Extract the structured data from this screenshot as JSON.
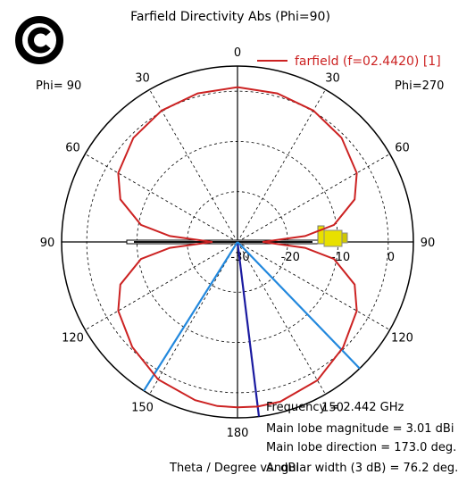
{
  "chart_data": {
    "type": "polar-line",
    "title": "Farfield Directivity Abs (Phi=90)",
    "left_label": "Phi= 90",
    "right_label": "Phi=270",
    "angle_labels": [
      {
        "deg": 0,
        "text": "0"
      },
      {
        "deg": 30,
        "text": "30"
      },
      {
        "deg": 60,
        "text": "60"
      },
      {
        "deg": 90,
        "text": "90"
      },
      {
        "deg": 120,
        "text": "120"
      },
      {
        "deg": 150,
        "text": "150"
      },
      {
        "deg": 180,
        "text": "180"
      },
      {
        "deg": -30,
        "text": "30"
      },
      {
        "deg": -60,
        "text": "60"
      },
      {
        "deg": -90,
        "text": "90"
      },
      {
        "deg": -120,
        "text": "120"
      },
      {
        "deg": -150,
        "text": "150"
      }
    ],
    "radial_range": [
      -30,
      5
    ],
    "radial_ticks": [
      {
        "value": -30,
        "text": "-30"
      },
      {
        "value": -20,
        "text": "-20"
      },
      {
        "value": -10,
        "text": "-10"
      },
      {
        "value": 0,
        "text": "0"
      }
    ],
    "grid": true,
    "legend": {
      "placement": "top-right",
      "label": "farfield (f=02.4420) [1]",
      "color": "#cc2222"
    },
    "series": [
      {
        "name": "farfield (f=02.4420) [1]",
        "color": "#cc2222",
        "theta_deg": [
          0,
          15,
          30,
          45,
          60,
          70,
          80,
          85,
          90,
          95,
          100,
          110,
          120,
          135,
          150,
          165,
          173,
          180,
          187,
          195,
          210,
          225,
          240,
          250,
          260,
          265,
          270,
          275,
          280,
          290,
          300,
          315,
          330,
          345,
          360
        ],
        "directivity_dbi": [
          0.8,
          0.6,
          0.2,
          -0.7,
          -2.6,
          -5.2,
          -10.5,
          -16.5,
          -25.0,
          -16.5,
          -10.5,
          -5.2,
          -2.6,
          -0.3,
          1.8,
          2.9,
          3.01,
          2.9,
          2.9,
          2.6,
          1.6,
          -0.4,
          -2.6,
          -5.2,
          -10.5,
          -16.5,
          -25.0,
          -16.5,
          -10.5,
          -5.2,
          -2.6,
          -0.7,
          0.2,
          0.6,
          0.8
        ]
      }
    ],
    "lines": [
      {
        "kind": "main-lobe-direction",
        "theta_deg": 173.0,
        "color": "#1a1aa0"
      },
      {
        "kind": "3db-beamwidth-edge",
        "theta_deg": 136.0,
        "color": "#2288dd"
      },
      {
        "kind": "3db-beamwidth-edge",
        "theta_deg": 212.2,
        "color": "#2288dd"
      }
    ],
    "info": {
      "frequency": "Frequency = 2.442 GHz",
      "magnitude": "Main lobe magnitude =      3.01 dBi",
      "direction": "Main lobe direction =  173.0 deg.",
      "width": "Angular width (3 dB) =   76.2 deg."
    },
    "xlabel": "Theta / Degree vs. dBi"
  }
}
